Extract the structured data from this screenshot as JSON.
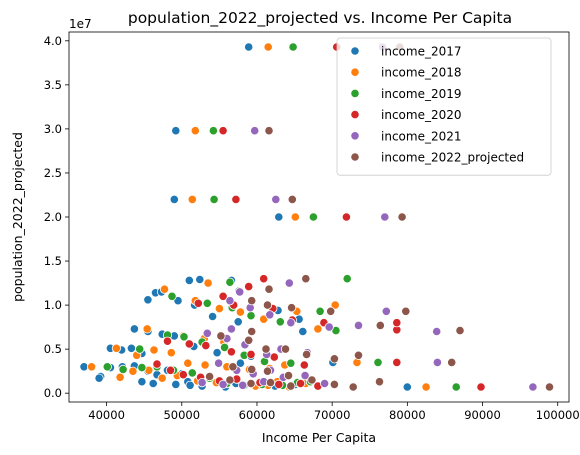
{
  "chart_data": {
    "type": "scatter",
    "title": "population_2022_projected vs. Income Per Capita",
    "xlabel": "Income Per Capita",
    "ylabel": "population_2022_projected",
    "y_offset_label": "1e7",
    "xlim": [
      35000,
      101500
    ],
    "ylim": [
      -1000000,
      41000000
    ],
    "y_scale": 10000000,
    "xticks": [
      40000,
      50000,
      60000,
      70000,
      80000,
      90000,
      100000
    ],
    "yticks": [
      0,
      5000000,
      10000000,
      15000000,
      20000000,
      25000000,
      30000000,
      35000000,
      40000000
    ],
    "xtick_labels": [
      "40000",
      "50000",
      "60000",
      "70000",
      "80000",
      "90000",
      "100000"
    ],
    "ytick_labels": [
      "0.0",
      "0.5",
      "1.0",
      "1.5",
      "2.0",
      "2.5",
      "3.0",
      "3.5",
      "4.0"
    ],
    "grid": false,
    "legend_position": "top-right",
    "series": [
      {
        "name": "income_2017",
        "color": "#1f77b4",
        "points": [
          [
            58900,
            39300000
          ],
          [
            49200,
            29800000
          ],
          [
            49000,
            22000000
          ],
          [
            62900,
            20000000
          ],
          [
            52400,
            12900000
          ],
          [
            51000,
            12800000
          ],
          [
            56600,
            12800000
          ],
          [
            45500,
            10600000
          ],
          [
            46500,
            11400000
          ],
          [
            47300,
            11500000
          ],
          [
            49500,
            10500000
          ],
          [
            51700,
            10000000
          ],
          [
            54100,
            8700000
          ],
          [
            57500,
            8100000
          ],
          [
            62800,
            9400000
          ],
          [
            65600,
            8400000
          ],
          [
            66100,
            7000000
          ],
          [
            43700,
            7300000
          ],
          [
            45500,
            7000000
          ],
          [
            47400,
            6700000
          ],
          [
            49000,
            6500000
          ],
          [
            40500,
            5100000
          ],
          [
            42000,
            4900000
          ],
          [
            43300,
            5100000
          ],
          [
            44700,
            4500000
          ],
          [
            51600,
            5300000
          ],
          [
            54700,
            4600000
          ],
          [
            57800,
            3400000
          ],
          [
            59200,
            4200000
          ],
          [
            37000,
            3000000
          ],
          [
            39200,
            1900000
          ],
          [
            40500,
            2900000
          ],
          [
            42100,
            3000000
          ],
          [
            43700,
            3100000
          ],
          [
            45500,
            2500000
          ],
          [
            46700,
            2100000
          ],
          [
            48100,
            2600000
          ],
          [
            50000,
            2200000
          ],
          [
            39000,
            1700000
          ],
          [
            44700,
            1300000
          ],
          [
            46200,
            1100000
          ],
          [
            49200,
            1000000
          ],
          [
            50800,
            1300000
          ],
          [
            51100,
            900000
          ],
          [
            52700,
            800000
          ],
          [
            55800,
            700000
          ],
          [
            57200,
            1100000
          ],
          [
            60100,
            900000
          ],
          [
            62400,
            800000
          ],
          [
            65100,
            1000000
          ],
          [
            70100,
            3500000
          ],
          [
            80000,
            700000
          ]
        ]
      },
      {
        "name": "income_2018",
        "color": "#ff7f0e",
        "points": [
          [
            61500,
            39300000
          ],
          [
            51800,
            29800000
          ],
          [
            51400,
            22000000
          ],
          [
            65100,
            20000000
          ],
          [
            53500,
            12500000
          ],
          [
            47700,
            11800000
          ],
          [
            51800,
            10500000
          ],
          [
            55000,
            9600000
          ],
          [
            57800,
            9200000
          ],
          [
            60900,
            8400000
          ],
          [
            65300,
            9300000
          ],
          [
            68100,
            7300000
          ],
          [
            45400,
            7300000
          ],
          [
            50200,
            6500000
          ],
          [
            53000,
            6200000
          ],
          [
            55600,
            5800000
          ],
          [
            41300,
            5100000
          ],
          [
            44000,
            4300000
          ],
          [
            46300,
            4900000
          ],
          [
            48600,
            4600000
          ],
          [
            50800,
            3400000
          ],
          [
            53100,
            3200000
          ],
          [
            56000,
            3000000
          ],
          [
            59000,
            2700000
          ],
          [
            61700,
            2800000
          ],
          [
            63700,
            3200000
          ],
          [
            38000,
            3000000
          ],
          [
            41800,
            1800000
          ],
          [
            43500,
            2500000
          ],
          [
            45600,
            2600000
          ],
          [
            47400,
            1700000
          ],
          [
            49400,
            2000000
          ],
          [
            52100,
            1400000
          ],
          [
            54600,
            1200000
          ],
          [
            57400,
            1600000
          ],
          [
            59800,
            800000
          ],
          [
            61500,
            900000
          ],
          [
            62700,
            1300000
          ],
          [
            64300,
            700000
          ],
          [
            66500,
            1100000
          ],
          [
            73300,
            3500000
          ],
          [
            70400,
            10000000
          ],
          [
            82500,
            700000
          ]
        ]
      },
      {
        "name": "income_2019",
        "color": "#2ca02c",
        "points": [
          [
            64800,
            39300000
          ],
          [
            54200,
            29800000
          ],
          [
            54300,
            22000000
          ],
          [
            67500,
            20000000
          ],
          [
            56400,
            12600000
          ],
          [
            57600,
            11600000
          ],
          [
            48700,
            11000000
          ],
          [
            53400,
            10200000
          ],
          [
            56700,
            9700000
          ],
          [
            59200,
            8800000
          ],
          [
            63100,
            8100000
          ],
          [
            68400,
            9300000
          ],
          [
            70500,
            7100000
          ],
          [
            44400,
            5000000
          ],
          [
            48100,
            6600000
          ],
          [
            50300,
            6400000
          ],
          [
            52700,
            5800000
          ],
          [
            55700,
            5200000
          ],
          [
            58300,
            4300000
          ],
          [
            61000,
            3600000
          ],
          [
            64500,
            3400000
          ],
          [
            40100,
            3000000
          ],
          [
            42200,
            2700000
          ],
          [
            44700,
            2900000
          ],
          [
            46700,
            3000000
          ],
          [
            48900,
            2600000
          ],
          [
            51400,
            2300000
          ],
          [
            53700,
            1700000
          ],
          [
            56000,
            1100000
          ],
          [
            58300,
            900000
          ],
          [
            60700,
            1000000
          ],
          [
            63400,
            900000
          ],
          [
            65400,
            1200000
          ],
          [
            67100,
            1300000
          ],
          [
            76100,
            3500000
          ],
          [
            72000,
            13000000
          ],
          [
            86500,
            700000
          ]
        ]
      },
      {
        "name": "income_2020",
        "color": "#d62728",
        "points": [
          [
            70600,
            39300000
          ],
          [
            55500,
            29800000
          ],
          [
            57200,
            22000000
          ],
          [
            71900,
            20000000
          ],
          [
            60900,
            13000000
          ],
          [
            58900,
            12100000
          ],
          [
            55500,
            11000000
          ],
          [
            52200,
            10200000
          ],
          [
            56900,
            10000000
          ],
          [
            62100,
            9600000
          ],
          [
            64700,
            8300000
          ],
          [
            68900,
            8000000
          ],
          [
            78600,
            7200000
          ],
          [
            78600,
            8000000
          ],
          [
            48100,
            5900000
          ],
          [
            51000,
            5600000
          ],
          [
            53200,
            5400000
          ],
          [
            56600,
            4700000
          ],
          [
            59200,
            4400000
          ],
          [
            62300,
            4100000
          ],
          [
            66300,
            3200000
          ],
          [
            46700,
            3300000
          ],
          [
            48500,
            2600000
          ],
          [
            50200,
            2100000
          ],
          [
            52500,
            1800000
          ],
          [
            55000,
            1400000
          ],
          [
            57300,
            1600000
          ],
          [
            60400,
            1200000
          ],
          [
            62900,
            1000000
          ],
          [
            65800,
            1100000
          ],
          [
            68100,
            800000
          ],
          [
            78600,
            3500000
          ],
          [
            89800,
            700000
          ]
        ]
      },
      {
        "name": "income_2021",
        "color": "#9467bd",
        "points": [
          [
            76700,
            39300000
          ],
          [
            59700,
            29800000
          ],
          [
            62500,
            22000000
          ],
          [
            77000,
            20000000
          ],
          [
            64300,
            12500000
          ],
          [
            57700,
            11500000
          ],
          [
            56400,
            10500000
          ],
          [
            59100,
            9700000
          ],
          [
            61700,
            8900000
          ],
          [
            64500,
            8000000
          ],
          [
            69600,
            7500000
          ],
          [
            73500,
            7700000
          ],
          [
            77200,
            9300000
          ],
          [
            83900,
            7000000
          ],
          [
            56600,
            7300000
          ],
          [
            53400,
            6800000
          ],
          [
            56000,
            6200000
          ],
          [
            58400,
            5500000
          ],
          [
            61300,
            4400000
          ],
          [
            63200,
            5000000
          ],
          [
            66700,
            4600000
          ],
          [
            54900,
            3400000
          ],
          [
            57300,
            2600000
          ],
          [
            59500,
            2200000
          ],
          [
            61800,
            2600000
          ],
          [
            63500,
            1800000
          ],
          [
            66400,
            2000000
          ],
          [
            69000,
            1100000
          ],
          [
            52700,
            1200000
          ],
          [
            55500,
            1000000
          ],
          [
            58100,
            900000
          ],
          [
            60900,
            1300000
          ],
          [
            84000,
            3500000
          ],
          [
            96700,
            700000
          ]
        ]
      },
      {
        "name": "income_2022_projected",
        "color": "#8c564b",
        "points": [
          [
            79000,
            39300000
          ],
          [
            61600,
            29800000
          ],
          [
            64700,
            22000000
          ],
          [
            79300,
            20000000
          ],
          [
            66500,
            13000000
          ],
          [
            61600,
            11800000
          ],
          [
            59300,
            10500000
          ],
          [
            61400,
            10000000
          ],
          [
            64600,
            9700000
          ],
          [
            69800,
            9300000
          ],
          [
            79800,
            9300000
          ],
          [
            76400,
            7700000
          ],
          [
            87000,
            7100000
          ],
          [
            59300,
            7000000
          ],
          [
            55200,
            6500000
          ],
          [
            58900,
            6000000
          ],
          [
            61200,
            5000000
          ],
          [
            63800,
            5000000
          ],
          [
            66600,
            4400000
          ],
          [
            70300,
            3900000
          ],
          [
            73500,
            4300000
          ],
          [
            76300,
            1300000
          ],
          [
            56800,
            3000000
          ],
          [
            59300,
            2700000
          ],
          [
            61400,
            2500000
          ],
          [
            64200,
            2000000
          ],
          [
            67300,
            1500000
          ],
          [
            70300,
            1000000
          ],
          [
            72800,
            700000
          ],
          [
            53700,
            1900000
          ],
          [
            56400,
            1500000
          ],
          [
            59200,
            1100000
          ],
          [
            61800,
            1200000
          ],
          [
            64500,
            800000
          ],
          [
            85900,
            3500000
          ],
          [
            98900,
            700000
          ]
        ]
      }
    ]
  }
}
